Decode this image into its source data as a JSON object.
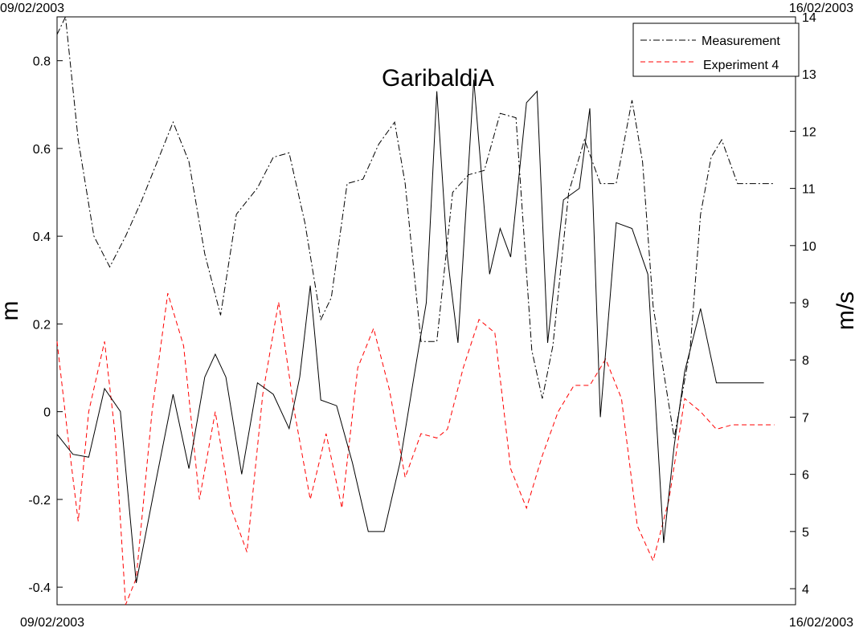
{
  "chart_data": {
    "type": "line",
    "title": "GaribaldiA",
    "date_labels": {
      "top_left": "09/02/2003",
      "top_right": "16/02/2003",
      "bottom_left": "09/02/2003",
      "bottom_right": "16/02/2003"
    },
    "x_range": [
      "09/02/2003",
      "16/02/2003"
    ],
    "y_left": {
      "label": "m",
      "lim": [
        -0.44,
        0.9
      ],
      "ticks": [
        -0.4,
        -0.2,
        0,
        0.2,
        0.4,
        0.6,
        0.8
      ],
      "tick_labels": [
        "-0.4",
        "-0.2",
        "0",
        "0.2",
        "0.4",
        "0.6",
        "0.8"
      ]
    },
    "y_right": {
      "label": "m/s",
      "lim": [
        3.72,
        14.0
      ],
      "ticks": [
        4,
        5,
        6,
        7,
        8,
        9,
        10,
        11,
        12,
        13,
        14
      ],
      "tick_labels": [
        "4",
        "5",
        "6",
        "7",
        "8",
        "9",
        "10",
        "11",
        "12",
        "13",
        "14"
      ]
    },
    "grid": false,
    "legend_position": "top-right",
    "legend": [
      {
        "label": "Measurement",
        "color": "#000000",
        "style": "dashdot"
      },
      {
        "label": "Experiment 4",
        "color": "#ff0000",
        "style": "dashed"
      }
    ],
    "series": [
      {
        "name": "Measurement",
        "axis": "left",
        "color": "#000000",
        "style": "dashdot",
        "x_days": [
          0,
          0.08,
          0.2,
          0.35,
          0.5,
          0.65,
          0.8,
          1.0,
          1.1,
          1.25,
          1.4,
          1.55,
          1.7,
          1.9,
          2.05,
          2.2,
          2.35,
          2.5,
          2.6,
          2.75,
          2.9,
          3.05,
          3.2,
          3.3,
          3.45,
          3.6,
          3.75,
          3.9,
          4.05,
          4.2,
          4.35,
          4.5,
          4.6,
          4.7,
          4.85,
          5.0,
          5.15,
          5.3,
          5.45,
          5.55,
          5.65,
          5.85,
          6.0,
          6.1,
          6.2,
          6.3,
          6.45,
          6.55,
          6.7,
          6.8
        ],
        "values": [
          0.86,
          0.9,
          0.62,
          0.4,
          0.33,
          0.4,
          0.48,
          0.6,
          0.66,
          0.57,
          0.36,
          0.22,
          0.45,
          0.51,
          0.58,
          0.59,
          0.43,
          0.21,
          0.26,
          0.52,
          0.53,
          0.61,
          0.66,
          0.52,
          0.16,
          0.16,
          0.5,
          0.54,
          0.55,
          0.68,
          0.67,
          0.14,
          0.03,
          0.15,
          0.5,
          0.62,
          0.52,
          0.52,
          0.71,
          0.57,
          0.24,
          -0.06,
          0.14,
          0.45,
          0.58,
          0.62,
          0.52,
          0.52,
          0.52,
          0.52
        ]
      },
      {
        "name": "Experiment 4",
        "axis": "left",
        "color": "#ff0000",
        "style": "dashed",
        "x_days": [
          0,
          0.1,
          0.2,
          0.3,
          0.45,
          0.55,
          0.65,
          0.75,
          0.9,
          1.05,
          1.2,
          1.35,
          1.5,
          1.65,
          1.8,
          1.95,
          2.1,
          2.25,
          2.4,
          2.55,
          2.7,
          2.85,
          3.0,
          3.15,
          3.3,
          3.45,
          3.6,
          3.7,
          3.85,
          4.0,
          4.15,
          4.3,
          4.45,
          4.6,
          4.75,
          4.9,
          5.05,
          5.2,
          5.35,
          5.5,
          5.65,
          5.8,
          5.95,
          6.1,
          6.25,
          6.4,
          6.55,
          6.7,
          6.8
        ],
        "values": [
          0.16,
          -0.05,
          -0.25,
          0.0,
          0.16,
          -0.05,
          -0.44,
          -0.38,
          0.0,
          0.27,
          0.15,
          -0.2,
          0.0,
          -0.22,
          -0.32,
          0.04,
          0.25,
          0.0,
          -0.2,
          -0.05,
          -0.22,
          0.1,
          0.19,
          0.05,
          -0.15,
          -0.05,
          -0.06,
          -0.04,
          0.1,
          0.21,
          0.18,
          -0.13,
          -0.22,
          -0.1,
          0.0,
          0.06,
          0.06,
          0.12,
          0.03,
          -0.26,
          -0.34,
          -0.2,
          0.03,
          0.0,
          -0.04,
          -0.03,
          -0.03,
          -0.03,
          -0.03
        ]
      },
      {
        "name": "",
        "axis": "right",
        "color": "#000000",
        "style": "solid",
        "x_days": [
          0,
          0.15,
          0.3,
          0.45,
          0.6,
          0.75,
          0.95,
          1.1,
          1.25,
          1.4,
          1.5,
          1.6,
          1.75,
          1.9,
          2.05,
          2.2,
          2.3,
          2.4,
          2.5,
          2.65,
          2.8,
          2.95,
          3.1,
          3.25,
          3.4,
          3.5,
          3.6,
          3.7,
          3.8,
          3.95,
          4.1,
          4.2,
          4.3,
          4.45,
          4.55,
          4.65,
          4.8,
          4.95,
          5.05,
          5.15,
          5.3,
          5.45,
          5.6,
          5.75,
          5.85,
          5.95,
          6.1,
          6.25,
          6.4,
          6.55,
          6.7
        ],
        "values": [
          6.7,
          6.35,
          6.3,
          7.5,
          7.1,
          4.1,
          6.0,
          7.4,
          6.1,
          7.7,
          8.1,
          7.7,
          6.0,
          7.6,
          7.4,
          6.8,
          7.7,
          9.3,
          7.3,
          7.2,
          6.2,
          5.0,
          5.0,
          6.2,
          7.9,
          9.0,
          12.7,
          9.8,
          8.3,
          12.9,
          9.5,
          10.3,
          9.8,
          12.5,
          12.7,
          8.3,
          10.8,
          11.0,
          12.4,
          7.0,
          10.4,
          10.3,
          9.5,
          4.8,
          6.5,
          7.8,
          8.9,
          7.6,
          7.6,
          7.6,
          7.6
        ]
      }
    ]
  }
}
